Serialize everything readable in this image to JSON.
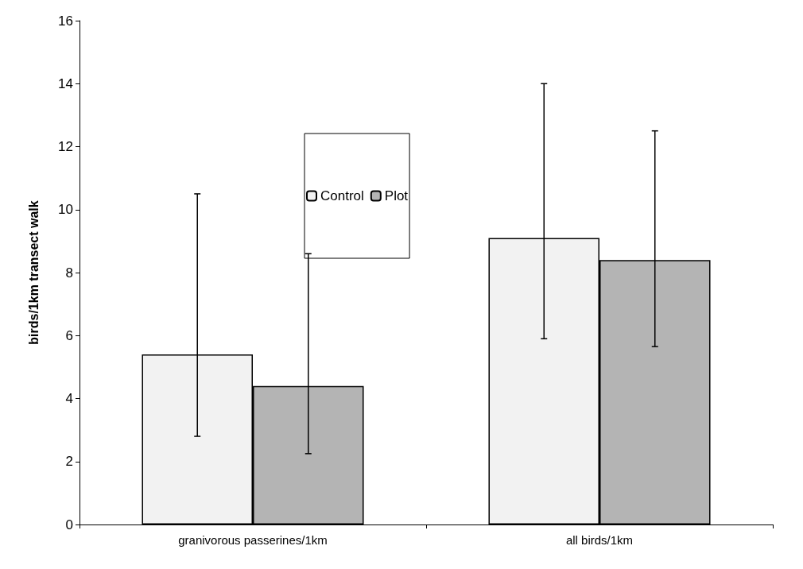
{
  "chart_data": {
    "type": "bar",
    "ylabel": "birds/1km transect walk",
    "categories": [
      "granivorous passerines/1km",
      "all birds/1km"
    ],
    "series": [
      {
        "name": "Control",
        "color": "#f2f2f2",
        "values": [
          5.4,
          9.1
        ],
        "errors": [
          [
            2.8,
            10.5
          ],
          [
            5.9,
            14
          ]
        ]
      },
      {
        "name": "Plot",
        "color": "#b4b4b4",
        "values": [
          4.4,
          8.4
        ],
        "errors": [
          [
            2.25,
            8.6
          ],
          [
            5.65,
            12.5
          ]
        ]
      }
    ],
    "ylim": [
      0,
      16
    ],
    "yticks": [
      0,
      2,
      4,
      6,
      8,
      10,
      12,
      14,
      16
    ],
    "grid": false,
    "legend": "top"
  }
}
